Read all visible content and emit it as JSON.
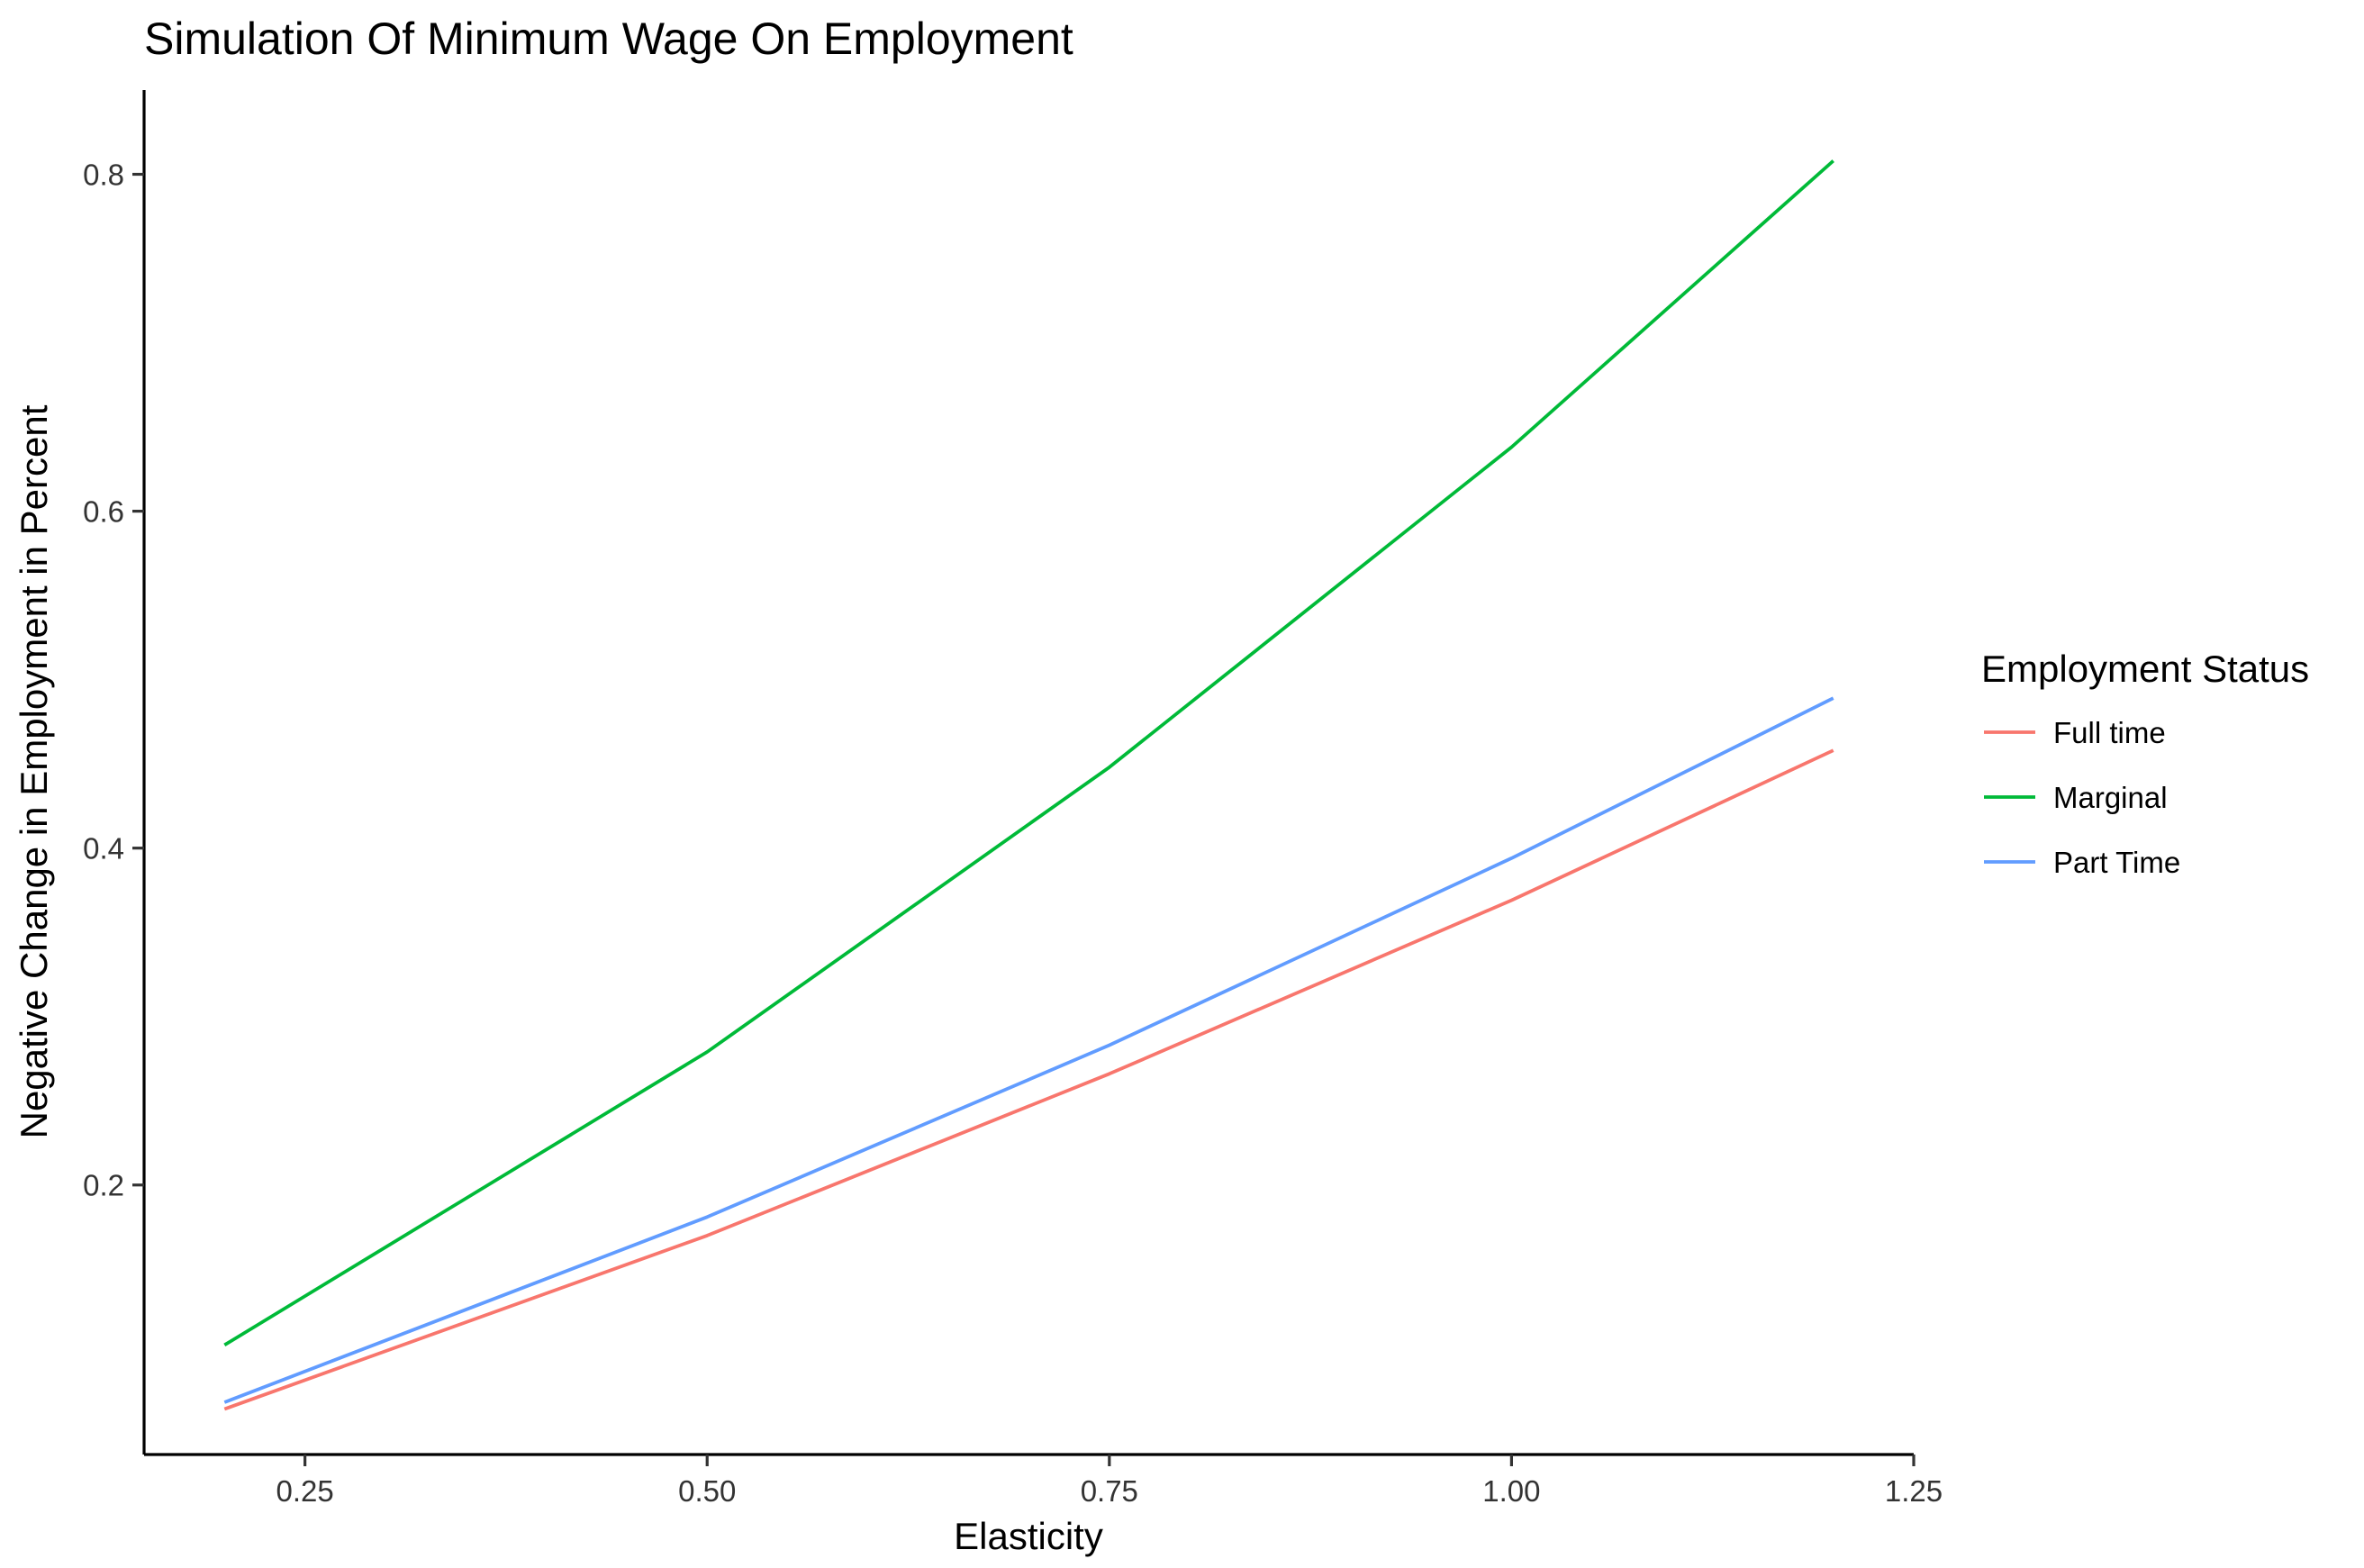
{
  "chart_data": {
    "type": "line",
    "title": "Simulation Of Minimum Wage On Employment",
    "xlabel": "Elasticity",
    "ylabel": "Negative Change in Employment in Percent",
    "xlim": [
      0.15,
      1.25
    ],
    "ylim": [
      0.04,
      0.85
    ],
    "x_ticks": [
      0.25,
      0.5,
      0.75,
      1.0,
      1.25
    ],
    "x_tick_labels": [
      "0.25",
      "0.50",
      "0.75",
      "1.00",
      "1.25"
    ],
    "y_ticks": [
      0.2,
      0.4,
      0.6,
      0.8
    ],
    "y_tick_labels": [
      "0.2",
      "0.4",
      "0.6",
      "0.8"
    ],
    "grid": false,
    "legend": {
      "title": "Employment Status",
      "position": "right"
    },
    "x": [
      0.2,
      0.5,
      0.75,
      1.0,
      1.2
    ],
    "series": [
      {
        "name": "Full time",
        "color": "#F8766D",
        "values": [
          0.067,
          0.17,
          0.266,
          0.369,
          0.458
        ]
      },
      {
        "name": "Marginal",
        "color": "#00BA38",
        "values": [
          0.105,
          0.279,
          0.448,
          0.638,
          0.808
        ]
      },
      {
        "name": "Part Time",
        "color": "#619CFF",
        "values": [
          0.071,
          0.181,
          0.283,
          0.394,
          0.489
        ]
      }
    ]
  }
}
